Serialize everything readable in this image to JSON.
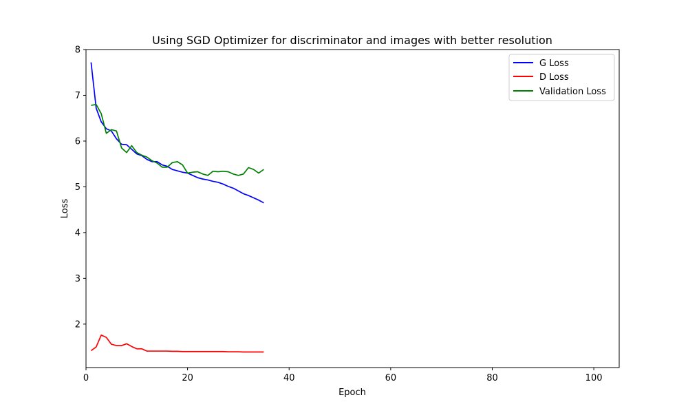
{
  "chart_data": {
    "type": "line",
    "title": "Using SGD Optimizer for discriminator and images with better resolution",
    "xlabel": "Epoch",
    "ylabel": "Loss",
    "xlim": [
      0,
      105
    ],
    "ylim": [
      1.05,
      8.0
    ],
    "xticks": [
      0,
      20,
      40,
      60,
      80,
      100
    ],
    "yticks": [
      2,
      3,
      4,
      5,
      6,
      7,
      8
    ],
    "grid": false,
    "legend_position": "top-right",
    "series": [
      {
        "name": "G Loss",
        "color": "#0000ff",
        "x": [
          1,
          2,
          3,
          4,
          5,
          6,
          7,
          8,
          9,
          10,
          11,
          12,
          13,
          14,
          15,
          16,
          17,
          18,
          19,
          20,
          21,
          22,
          23,
          24,
          25,
          26,
          27,
          28,
          29,
          30,
          31,
          32,
          33,
          34,
          35
        ],
        "y": [
          7.72,
          6.72,
          6.42,
          6.27,
          6.22,
          6.05,
          5.93,
          5.92,
          5.82,
          5.72,
          5.68,
          5.6,
          5.55,
          5.55,
          5.48,
          5.45,
          5.38,
          5.35,
          5.32,
          5.3,
          5.25,
          5.2,
          5.17,
          5.15,
          5.12,
          5.1,
          5.06,
          5.01,
          4.97,
          4.91,
          4.85,
          4.81,
          4.76,
          4.71,
          4.65
        ]
      },
      {
        "name": "D Loss",
        "color": "#ff0000",
        "x": [
          1,
          2,
          3,
          4,
          5,
          6,
          7,
          8,
          9,
          10,
          11,
          12,
          13,
          14,
          15,
          16,
          17,
          18,
          19,
          20,
          21,
          22,
          23,
          24,
          25,
          26,
          27,
          28,
          29,
          30,
          31,
          32,
          33,
          34,
          35
        ],
        "y": [
          1.42,
          1.5,
          1.76,
          1.71,
          1.56,
          1.53,
          1.53,
          1.57,
          1.51,
          1.46,
          1.46,
          1.41,
          1.41,
          1.41,
          1.41,
          1.41,
          1.405,
          1.405,
          1.4,
          1.4,
          1.4,
          1.4,
          1.4,
          1.4,
          1.4,
          1.4,
          1.4,
          1.395,
          1.395,
          1.395,
          1.39,
          1.39,
          1.39,
          1.39,
          1.39
        ]
      },
      {
        "name": "Validation Loss",
        "color": "#008000",
        "x": [
          1,
          2,
          3,
          4,
          5,
          6,
          7,
          8,
          9,
          10,
          11,
          12,
          13,
          14,
          15,
          16,
          17,
          18,
          19,
          20,
          21,
          22,
          23,
          24,
          25,
          26,
          27,
          28,
          29,
          30,
          31,
          32,
          33,
          34,
          35
        ],
        "y": [
          6.78,
          6.8,
          6.6,
          6.17,
          6.25,
          6.22,
          5.85,
          5.75,
          5.9,
          5.75,
          5.69,
          5.65,
          5.57,
          5.52,
          5.43,
          5.43,
          5.53,
          5.55,
          5.48,
          5.3,
          5.32,
          5.33,
          5.28,
          5.25,
          5.34,
          5.33,
          5.34,
          5.33,
          5.28,
          5.25,
          5.28,
          5.42,
          5.38,
          5.3,
          5.38
        ]
      }
    ]
  }
}
